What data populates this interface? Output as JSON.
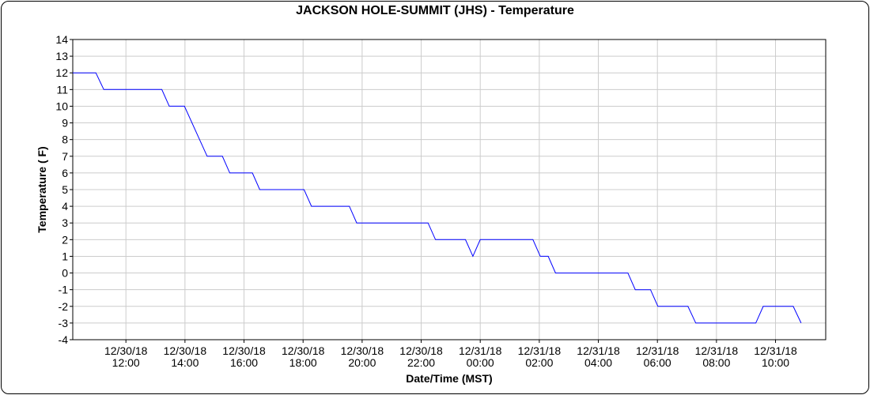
{
  "chart_data": {
    "type": "line",
    "title": "JACKSON HOLE-SUMMIT (JHS) - Temperature",
    "xlabel": "Date/Time (MST)",
    "ylabel": "Temperature ( F)",
    "ylim": [
      -4,
      14
    ],
    "yticks": [
      -4,
      -3,
      -2,
      -1,
      0,
      1,
      2,
      3,
      4,
      5,
      6,
      7,
      8,
      9,
      10,
      11,
      12,
      13,
      14
    ],
    "xlim": [
      "12/30/18 10:12",
      "12/31/18 11:42"
    ],
    "xticks": [
      {
        "date": "12/30/18",
        "time": "12:00"
      },
      {
        "date": "12/30/18",
        "time": "14:00"
      },
      {
        "date": "12/30/18",
        "time": "16:00"
      },
      {
        "date": "12/30/18",
        "time": "18:00"
      },
      {
        "date": "12/30/18",
        "time": "20:00"
      },
      {
        "date": "12/30/18",
        "time": "22:00"
      },
      {
        "date": "12/31/18",
        "time": "00:00"
      },
      {
        "date": "12/31/18",
        "time": "02:00"
      },
      {
        "date": "12/31/18",
        "time": "04:00"
      },
      {
        "date": "12/31/18",
        "time": "06:00"
      },
      {
        "date": "12/31/18",
        "time": "08:00"
      },
      {
        "date": "12/31/18",
        "time": "10:00"
      }
    ],
    "grid": true,
    "series": [
      {
        "color": "#0000ff",
        "points": [
          [
            "12/30/18 10:12",
            12
          ],
          [
            "12/30/18 10:59",
            12
          ],
          [
            "12/30/18 11:15",
            11
          ],
          [
            "12/30/18 13:13",
            11
          ],
          [
            "12/30/18 13:28",
            10
          ],
          [
            "12/30/18 13:59",
            10
          ],
          [
            "12/30/18 14:45",
            7
          ],
          [
            "12/30/18 15:16",
            7
          ],
          [
            "12/30/18 15:31",
            6
          ],
          [
            "12/30/18 16:17",
            6
          ],
          [
            "12/30/18 16:32",
            5
          ],
          [
            "12/30/18 18:02",
            5
          ],
          [
            "12/30/18 18:17",
            4
          ],
          [
            "12/30/18 19:34",
            4
          ],
          [
            "12/30/18 19:49",
            3
          ],
          [
            "12/30/18 22:14",
            3
          ],
          [
            "12/30/18 22:29",
            2
          ],
          [
            "12/30/18 23:30",
            2
          ],
          [
            "12/30/18 23:45",
            1
          ],
          [
            "12/31/18 00:00",
            2
          ],
          [
            "12/31/18 01:47",
            2
          ],
          [
            "12/31/18 02:02",
            1
          ],
          [
            "12/31/18 02:18",
            1
          ],
          [
            "12/31/18 02:33",
            0
          ],
          [
            "12/31/18 05:00",
            0
          ],
          [
            "12/31/18 05:15",
            -1
          ],
          [
            "12/31/18 05:46",
            -1
          ],
          [
            "12/31/18 06:01",
            -2
          ],
          [
            "12/31/18 07:02",
            -2
          ],
          [
            "12/31/18 07:18",
            -3
          ],
          [
            "12/31/18 09:20",
            -3
          ],
          [
            "12/31/18 09:35",
            -2
          ],
          [
            "12/31/18 10:36",
            -2
          ],
          [
            "12/31/18 10:52",
            -3
          ]
        ]
      }
    ]
  }
}
